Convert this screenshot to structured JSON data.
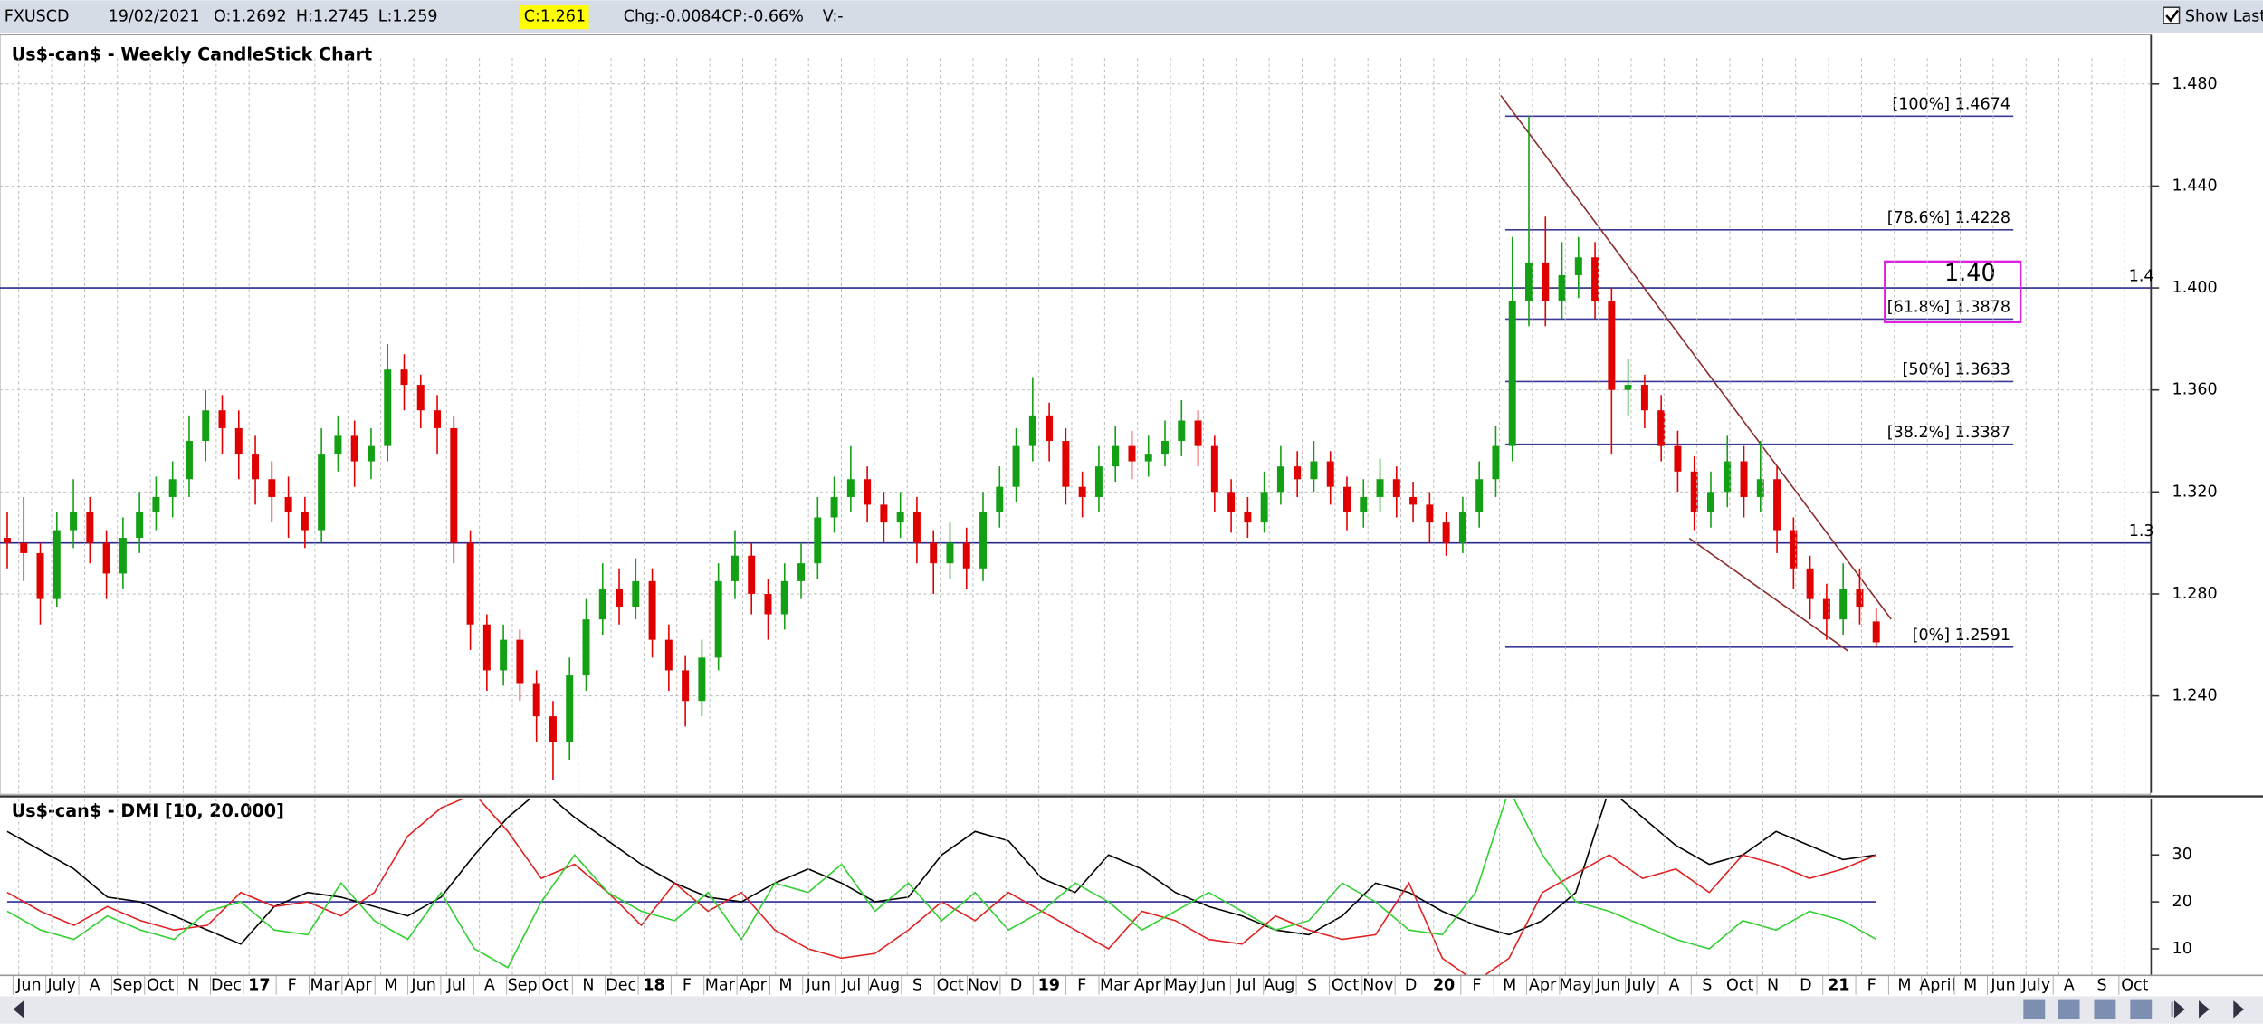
{
  "header": {
    "symbol": "FXUSCD",
    "date": "19/02/2021",
    "open": "O:1.2692",
    "high": "H:1.2745",
    "low": "L:1.259",
    "close": "C:1.261",
    "change": "Chg:-0.0084",
    "change_percent": "CP:-0.66%",
    "volume": "V:-",
    "show_last": "Show Last"
  },
  "x_labels": [
    "Jun",
    "July",
    "A",
    "Sep",
    "Oct",
    "N",
    "Dec",
    "17",
    "F",
    "Mar",
    "Apr",
    "M",
    "Jun",
    "Jul",
    "A",
    "Sep",
    "Oct",
    "N",
    "Dec",
    "18",
    "F",
    "Mar",
    "Apr",
    "M",
    "Jun",
    "Jul",
    "Aug",
    "S",
    "Oct",
    "Nov",
    "D",
    "19",
    "F",
    "Mar",
    "Apr",
    "May",
    "Jun",
    "Jul",
    "Aug",
    "S",
    "Oct",
    "Nov",
    "D",
    "20",
    "F",
    "M",
    "Apr",
    "May",
    "Jun",
    "July",
    "A",
    "S",
    "Oct",
    "N",
    "D",
    "21",
    "F",
    "M",
    "April",
    "M",
    "Jun",
    "July",
    "A",
    "S",
    "Oct"
  ],
  "chart_data": [
    {
      "type": "candlestick",
      "title": "Us$-can$ - Weekly CandleStick Chart",
      "ylim": [
        1.202,
        1.4902
      ],
      "yticks": [
        {
          "value": 1.48,
          "label": "1.480"
        },
        {
          "value": 1.44,
          "label": "1.440"
        },
        {
          "value": 1.4,
          "label": "1.400"
        },
        {
          "value": 1.36,
          "label": "1.360"
        },
        {
          "value": 1.32,
          "label": "1.320"
        },
        {
          "value": 1.28,
          "label": "1.280"
        },
        {
          "value": 1.24,
          "label": "1.240"
        }
      ],
      "grid": true,
      "up_color": "#14a014",
      "down_color": "#e00000",
      "hlines": [
        1.4,
        1.3
      ],
      "callout": "1.40",
      "fib_levels": [
        {
          "value": 1.4674,
          "label": "[100%] 1.4674"
        },
        {
          "value": 1.4228,
          "label": "[78.6%] 1.4228"
        },
        {
          "value": 1.3878,
          "label": "[61.8%] 1.3878"
        },
        {
          "value": 1.3633,
          "label": "[50%] 1.3633"
        },
        {
          "value": 1.3387,
          "label": "[38.2%] 1.3387"
        },
        {
          "value": 1.2591,
          "label": "[0%] 1.2591"
        }
      ],
      "trendlines": [
        {
          "x": [
            90.3,
            113.9
          ],
          "y": [
            1.4755,
            1.2701
          ]
        },
        {
          "x": [
            101.7,
            111.3
          ],
          "y": [
            1.3018,
            1.2576
          ]
        }
      ],
      "candles": [
        [
          1.302,
          1.312,
          1.29,
          1.3
        ],
        [
          1.3,
          1.318,
          1.285,
          1.296
        ],
        [
          1.296,
          1.3,
          1.268,
          1.278
        ],
        [
          1.278,
          1.312,
          1.275,
          1.305
        ],
        [
          1.305,
          1.325,
          1.298,
          1.312
        ],
        [
          1.312,
          1.318,
          1.292,
          1.3
        ],
        [
          1.3,
          1.305,
          1.278,
          1.288
        ],
        [
          1.288,
          1.31,
          1.282,
          1.302
        ],
        [
          1.302,
          1.32,
          1.296,
          1.312
        ],
        [
          1.312,
          1.326,
          1.305,
          1.318
        ],
        [
          1.318,
          1.332,
          1.31,
          1.325
        ],
        [
          1.325,
          1.35,
          1.318,
          1.34
        ],
        [
          1.34,
          1.36,
          1.332,
          1.352
        ],
        [
          1.352,
          1.358,
          1.335,
          1.345
        ],
        [
          1.345,
          1.352,
          1.325,
          1.335
        ],
        [
          1.335,
          1.342,
          1.315,
          1.325
        ],
        [
          1.325,
          1.332,
          1.308,
          1.318
        ],
        [
          1.318,
          1.326,
          1.302,
          1.312
        ],
        [
          1.312,
          1.318,
          1.298,
          1.305
        ],
        [
          1.305,
          1.345,
          1.3,
          1.335
        ],
        [
          1.335,
          1.35,
          1.328,
          1.342
        ],
        [
          1.342,
          1.348,
          1.322,
          1.332
        ],
        [
          1.332,
          1.345,
          1.325,
          1.338
        ],
        [
          1.338,
          1.378,
          1.332,
          1.368
        ],
        [
          1.368,
          1.374,
          1.352,
          1.362
        ],
        [
          1.362,
          1.366,
          1.345,
          1.352
        ],
        [
          1.352,
          1.358,
          1.335,
          1.345
        ],
        [
          1.345,
          1.35,
          1.292,
          1.3
        ],
        [
          1.3,
          1.305,
          1.258,
          1.268
        ],
        [
          1.268,
          1.272,
          1.242,
          1.25
        ],
        [
          1.25,
          1.268,
          1.244,
          1.262
        ],
        [
          1.262,
          1.266,
          1.238,
          1.245
        ],
        [
          1.245,
          1.25,
          1.222,
          1.232
        ],
        [
          1.232,
          1.238,
          1.207,
          1.222
        ],
        [
          1.222,
          1.255,
          1.215,
          1.248
        ],
        [
          1.248,
          1.278,
          1.242,
          1.27
        ],
        [
          1.27,
          1.292,
          1.264,
          1.282
        ],
        [
          1.282,
          1.29,
          1.268,
          1.275
        ],
        [
          1.275,
          1.294,
          1.27,
          1.285
        ],
        [
          1.285,
          1.29,
          1.255,
          1.262
        ],
        [
          1.262,
          1.268,
          1.242,
          1.25
        ],
        [
          1.25,
          1.256,
          1.228,
          1.238
        ],
        [
          1.238,
          1.262,
          1.232,
          1.255
        ],
        [
          1.255,
          1.292,
          1.25,
          1.285
        ],
        [
          1.285,
          1.305,
          1.278,
          1.295
        ],
        [
          1.295,
          1.3,
          1.272,
          1.28
        ],
        [
          1.28,
          1.286,
          1.262,
          1.272
        ],
        [
          1.272,
          1.292,
          1.266,
          1.285
        ],
        [
          1.285,
          1.3,
          1.278,
          1.292
        ],
        [
          1.292,
          1.318,
          1.286,
          1.31
        ],
        [
          1.31,
          1.326,
          1.304,
          1.318
        ],
        [
          1.318,
          1.338,
          1.312,
          1.325
        ],
        [
          1.325,
          1.33,
          1.308,
          1.315
        ],
        [
          1.315,
          1.32,
          1.3,
          1.308
        ],
        [
          1.308,
          1.32,
          1.302,
          1.312
        ],
        [
          1.312,
          1.318,
          1.292,
          1.3
        ],
        [
          1.3,
          1.305,
          1.28,
          1.292
        ],
        [
          1.292,
          1.308,
          1.286,
          1.3
        ],
        [
          1.3,
          1.306,
          1.282,
          1.29
        ],
        [
          1.29,
          1.32,
          1.285,
          1.312
        ],
        [
          1.312,
          1.33,
          1.306,
          1.322
        ],
        [
          1.322,
          1.345,
          1.316,
          1.338
        ],
        [
          1.338,
          1.365,
          1.332,
          1.35
        ],
        [
          1.35,
          1.355,
          1.332,
          1.34
        ],
        [
          1.34,
          1.345,
          1.315,
          1.322
        ],
        [
          1.322,
          1.328,
          1.31,
          1.318
        ],
        [
          1.318,
          1.338,
          1.312,
          1.33
        ],
        [
          1.33,
          1.346,
          1.324,
          1.338
        ],
        [
          1.338,
          1.344,
          1.325,
          1.332
        ],
        [
          1.332,
          1.342,
          1.326,
          1.335
        ],
        [
          1.335,
          1.348,
          1.33,
          1.34
        ],
        [
          1.34,
          1.356,
          1.334,
          1.348
        ],
        [
          1.348,
          1.352,
          1.33,
          1.338
        ],
        [
          1.338,
          1.342,
          1.312,
          1.32
        ],
        [
          1.32,
          1.325,
          1.304,
          1.312
        ],
        [
          1.312,
          1.318,
          1.302,
          1.308
        ],
        [
          1.308,
          1.328,
          1.304,
          1.32
        ],
        [
          1.32,
          1.338,
          1.315,
          1.33
        ],
        [
          1.33,
          1.336,
          1.318,
          1.325
        ],
        [
          1.325,
          1.34,
          1.32,
          1.332
        ],
        [
          1.332,
          1.336,
          1.315,
          1.322
        ],
        [
          1.322,
          1.326,
          1.305,
          1.312
        ],
        [
          1.312,
          1.325,
          1.306,
          1.318
        ],
        [
          1.318,
          1.333,
          1.312,
          1.325
        ],
        [
          1.325,
          1.33,
          1.31,
          1.318
        ],
        [
          1.318,
          1.324,
          1.308,
          1.315
        ],
        [
          1.315,
          1.32,
          1.3,
          1.308
        ],
        [
          1.308,
          1.312,
          1.295,
          1.3
        ],
        [
          1.3,
          1.318,
          1.296,
          1.312
        ],
        [
          1.312,
          1.332,
          1.306,
          1.325
        ],
        [
          1.325,
          1.346,
          1.318,
          1.338
        ],
        [
          1.338,
          1.42,
          1.332,
          1.395
        ],
        [
          1.395,
          1.4674,
          1.385,
          1.41
        ],
        [
          1.41,
          1.428,
          1.385,
          1.395
        ],
        [
          1.395,
          1.418,
          1.388,
          1.405
        ],
        [
          1.405,
          1.42,
          1.396,
          1.412
        ],
        [
          1.412,
          1.418,
          1.388,
          1.395
        ],
        [
          1.395,
          1.4,
          1.335,
          1.36
        ],
        [
          1.36,
          1.372,
          1.35,
          1.362
        ],
        [
          1.362,
          1.366,
          1.345,
          1.352
        ],
        [
          1.352,
          1.358,
          1.332,
          1.338
        ],
        [
          1.338,
          1.344,
          1.32,
          1.328
        ],
        [
          1.328,
          1.334,
          1.305,
          1.312
        ],
        [
          1.312,
          1.328,
          1.306,
          1.32
        ],
        [
          1.32,
          1.342,
          1.314,
          1.332
        ],
        [
          1.332,
          1.338,
          1.31,
          1.318
        ],
        [
          1.318,
          1.34,
          1.312,
          1.325
        ],
        [
          1.325,
          1.33,
          1.296,
          1.305
        ],
        [
          1.305,
          1.31,
          1.282,
          1.29
        ],
        [
          1.29,
          1.295,
          1.27,
          1.278
        ],
        [
          1.278,
          1.284,
          1.262,
          1.27
        ],
        [
          1.27,
          1.292,
          1.264,
          1.282
        ],
        [
          1.282,
          1.29,
          1.268,
          1.275
        ],
        [
          1.2692,
          1.2745,
          1.259,
          1.261
        ]
      ]
    },
    {
      "type": "line",
      "title": "Us$-can$ - DMI [10, 20.000]",
      "ylim": [
        4.5,
        42
      ],
      "yticks": [
        10,
        20,
        30
      ],
      "hlines": [
        20
      ],
      "series": [
        {
          "color": "#000000",
          "values": [
            35,
            31,
            27,
            21,
            20,
            17,
            14,
            11,
            19,
            22,
            21,
            19,
            17,
            21,
            30,
            38,
            44,
            38,
            33,
            28,
            24,
            21,
            20,
            24,
            27,
            24,
            20,
            21,
            30,
            35,
            33,
            25,
            22,
            30,
            27,
            22,
            19,
            17,
            14,
            13,
            17,
            24,
            22,
            18,
            15,
            13,
            16,
            22,
            44,
            38,
            32,
            28,
            30,
            35,
            32,
            29,
            30
          ]
        },
        {
          "color": "#e02020",
          "values": [
            22,
            18,
            15,
            19,
            16,
            14,
            15,
            22,
            19,
            20,
            17,
            22,
            34,
            40,
            43,
            35,
            25,
            28,
            22,
            15,
            24,
            18,
            22,
            14,
            10,
            8,
            9,
            14,
            20,
            16,
            22,
            18,
            14,
            10,
            18,
            16,
            12,
            11,
            17,
            14,
            12,
            13,
            24,
            8,
            3,
            8,
            22,
            26,
            30,
            25,
            27,
            22,
            30,
            28,
            25,
            27,
            30
          ]
        },
        {
          "color": "#30d030",
          "values": [
            18,
            14,
            12,
            17,
            14,
            12,
            18,
            20,
            14,
            13,
            24,
            16,
            12,
            22,
            10,
            6,
            20,
            30,
            22,
            18,
            16,
            22,
            12,
            24,
            22,
            28,
            18,
            24,
            16,
            22,
            14,
            18,
            24,
            20,
            14,
            18,
            22,
            18,
            14,
            16,
            24,
            20,
            14,
            13,
            22,
            44,
            30,
            20,
            18,
            15,
            12,
            10,
            16,
            14,
            18,
            16,
            12
          ]
        }
      ]
    }
  ]
}
